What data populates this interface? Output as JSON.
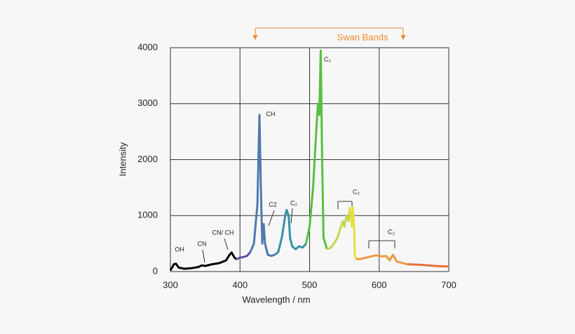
{
  "chart_data": {
    "type": "line",
    "x_label": "Wavelength / nm",
    "y_label": "Intensity",
    "xlim": [
      300,
      700
    ],
    "ylim": [
      0,
      4000
    ],
    "xticks": [
      300,
      400,
      500,
      600,
      700
    ],
    "yticks": [
      0,
      1000,
      2000,
      3000,
      4000
    ],
    "grid": true,
    "series": [
      {
        "color": "#000000",
        "x": [
          300,
          305,
          308,
          312,
          320,
          330,
          340,
          345,
          350,
          360,
          370,
          380,
          385,
          388,
          392,
          395
        ],
        "values": [
          20,
          130,
          140,
          70,
          50,
          60,
          80,
          110,
          100,
          130,
          150,
          200,
          300,
          340,
          250,
          220
        ]
      },
      {
        "color": "#5a4fa8",
        "x": [
          395,
          400,
          405,
          410,
          415
        ],
        "values": [
          220,
          250,
          260,
          280,
          350
        ]
      },
      {
        "color": "#4f79b0",
        "x": [
          415,
          420,
          425,
          428,
          430,
          432,
          434,
          436,
          440,
          445,
          450
        ],
        "values": [
          350,
          500,
          1200,
          2800,
          1500,
          500,
          850,
          500,
          300,
          280,
          300
        ]
      },
      {
        "color": "#3592a8",
        "x": [
          450,
          455,
          460,
          465,
          467,
          470,
          472,
          475,
          480,
          485,
          490,
          495
        ],
        "values": [
          300,
          350,
          600,
          1000,
          1100,
          1000,
          600,
          450,
          400,
          450,
          430,
          500
        ]
      },
      {
        "color": "#58c040",
        "x": [
          495,
          500,
          505,
          510,
          512,
          514,
          516,
          518,
          520,
          525
        ],
        "values": [
          500,
          800,
          1500,
          2600,
          3000,
          2800,
          3950,
          2000,
          600,
          400
        ]
      },
      {
        "color": "#c0d850",
        "x": [
          525,
          530,
          535,
          540,
          545,
          548,
          550,
          553,
          556,
          558
        ],
        "values": [
          400,
          420,
          500,
          600,
          800,
          900,
          800,
          1000,
          900,
          1150
        ]
      },
      {
        "color": "#e8e040",
        "x": [
          558,
          561,
          562,
          564,
          565,
          567
        ],
        "values": [
          1150,
          800,
          1150,
          800,
          300,
          220
        ]
      },
      {
        "color": "#f09a40",
        "x": [
          567,
          575,
          585,
          595,
          605,
          610,
          615,
          620,
          625,
          640
        ],
        "values": [
          220,
          230,
          260,
          290,
          270,
          280,
          200,
          300,
          180,
          130
        ]
      },
      {
        "color": "#e8703a",
        "x": [
          640,
          660,
          680,
          700
        ],
        "values": [
          130,
          120,
          100,
          90
        ]
      }
    ],
    "annotations": [
      "OH",
      "CN",
      "CN/ CH",
      "CH",
      "C2",
      "C₂",
      "C₂",
      "C₂",
      "C₂"
    ],
    "bracket_label": "Swan Bands"
  }
}
